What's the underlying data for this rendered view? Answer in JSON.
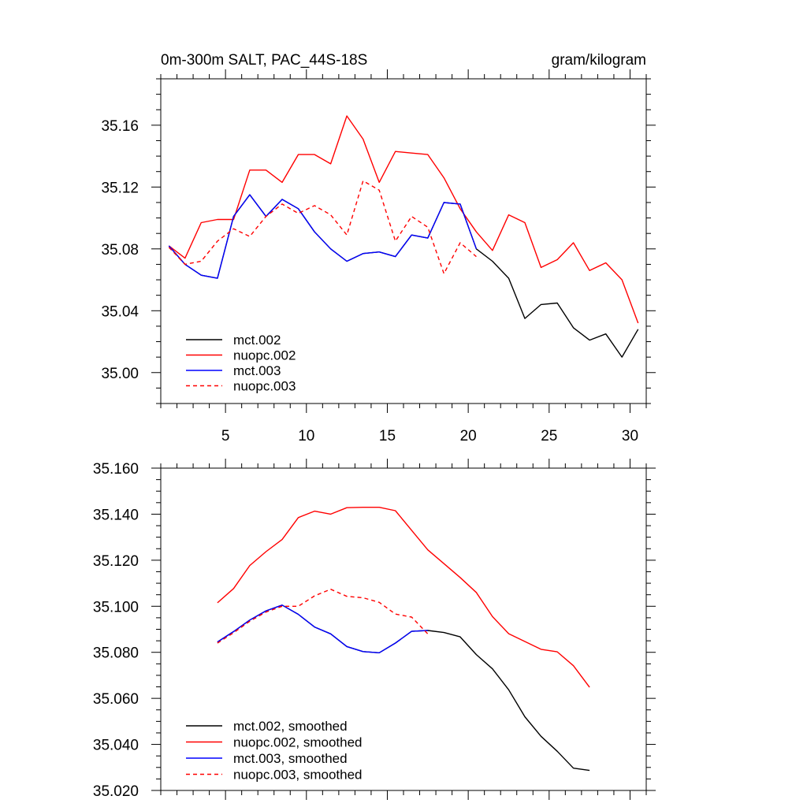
{
  "chart_data": [
    {
      "type": "line",
      "title": "0m-300m SALT, PAC_44S-18S",
      "units": "gram/kilogram",
      "xlim": [
        1,
        31
      ],
      "ylim": [
        34.98,
        35.19
      ],
      "x_ticks": [
        5,
        10,
        15,
        20,
        25,
        30
      ],
      "y_ticks": [
        35.0,
        35.04,
        35.08,
        35.12,
        35.16
      ],
      "y_tick_labels": [
        "35.00",
        "35.04",
        "35.08",
        "35.12",
        "35.16"
      ],
      "legend": "bottom-left",
      "series": [
        {
          "name": "mct.002",
          "color": "#000000",
          "dash": "solid",
          "x": [
            1.5,
            2.5,
            3.5,
            4.5,
            5.5,
            6.5,
            7.5,
            8.5,
            9.5,
            10.5,
            11.5,
            12.5,
            13.5,
            14.5,
            15.5,
            16.5,
            17.5,
            18.5,
            19.5,
            20.5,
            21.5,
            22.5,
            23.5,
            24.5,
            25.5,
            26.5,
            27.5,
            28.5,
            29.5,
            30.5
          ],
          "values": [
            35.082,
            35.07,
            35.063,
            35.061,
            35.101,
            35.115,
            35.101,
            35.112,
            35.106,
            35.091,
            35.08,
            35.072,
            35.077,
            35.078,
            35.075,
            35.089,
            35.087,
            35.11,
            35.109,
            35.08,
            35.072,
            35.061,
            35.035,
            35.044,
            35.045,
            35.029,
            35.021,
            35.025,
            35.01,
            35.028
          ]
        },
        {
          "name": "nuopc.002",
          "color": "#ff0000",
          "dash": "solid",
          "x": [
            1.5,
            2.5,
            3.5,
            4.5,
            5.5,
            6.5,
            7.5,
            8.5,
            9.5,
            10.5,
            11.5,
            12.5,
            13.5,
            14.5,
            15.5,
            16.5,
            17.5,
            18.5,
            19.5,
            20.5,
            21.5,
            22.5,
            23.5,
            24.5,
            25.5,
            26.5,
            27.5,
            28.5,
            29.5,
            30.5
          ],
          "values": [
            35.082,
            35.074,
            35.097,
            35.099,
            35.099,
            35.131,
            35.131,
            35.123,
            35.141,
            35.141,
            35.135,
            35.166,
            35.151,
            35.123,
            35.143,
            35.142,
            35.141,
            35.126,
            35.106,
            35.091,
            35.079,
            35.102,
            35.097,
            35.068,
            35.073,
            35.084,
            35.066,
            35.071,
            35.06,
            35.032
          ]
        },
        {
          "name": "mct.003",
          "color": "#0000ff",
          "dash": "solid",
          "x": [
            1.5,
            2.5,
            3.5,
            4.5,
            5.5,
            6.5,
            7.5,
            8.5,
            9.5,
            10.5,
            11.5,
            12.5,
            13.5,
            14.5,
            15.5,
            16.5,
            17.5,
            18.5,
            19.5,
            20.5
          ],
          "values": [
            35.082,
            35.07,
            35.063,
            35.061,
            35.101,
            35.115,
            35.101,
            35.112,
            35.106,
            35.091,
            35.08,
            35.072,
            35.077,
            35.078,
            35.075,
            35.089,
            35.087,
            35.11,
            35.109,
            35.08
          ]
        },
        {
          "name": "nuopc.003",
          "color": "#ff0000",
          "dash": "dashed",
          "x": [
            1.5,
            2.5,
            3.5,
            4.5,
            5.5,
            6.5,
            7.5,
            8.5,
            9.5,
            10.5,
            11.5,
            12.5,
            13.5,
            14.5,
            15.5,
            16.5,
            17.5,
            18.5,
            19.5,
            20.5
          ],
          "values": [
            35.081,
            35.07,
            35.072,
            35.085,
            35.093,
            35.088,
            35.101,
            35.109,
            35.103,
            35.108,
            35.102,
            35.089,
            35.124,
            35.118,
            35.085,
            35.101,
            35.094,
            35.064,
            35.084,
            35.075
          ]
        }
      ]
    },
    {
      "type": "line",
      "xlim": [
        1,
        31
      ],
      "ylim": [
        35.02,
        35.16
      ],
      "x_ticks": [
        5,
        10,
        15,
        20,
        25,
        30
      ],
      "y_ticks": [
        35.02,
        35.04,
        35.06,
        35.08,
        35.1,
        35.12,
        35.14,
        35.16
      ],
      "y_tick_labels": [
        "35.020",
        "35.040",
        "35.060",
        "35.080",
        "35.100",
        "35.120",
        "35.140",
        "35.160"
      ],
      "legend": "bottom-left",
      "series": [
        {
          "name": "mct.002, smoothed",
          "color": "#000000",
          "dash": "solid",
          "x": [
            4.5,
            5.5,
            6.5,
            7.5,
            8.5,
            9.5,
            10.5,
            11.5,
            12.5,
            13.5,
            14.5,
            15.5,
            16.5,
            17.5,
            18.5,
            19.5,
            20.5,
            21.5,
            22.5,
            23.5,
            24.5,
            25.5,
            26.5,
            27.5
          ],
          "values": [
            35.0845,
            35.089,
            35.094,
            35.098,
            35.1005,
            35.0965,
            35.091,
            35.088,
            35.0825,
            35.0803,
            35.0798,
            35.084,
            35.0891,
            35.0895,
            35.0886,
            35.0867,
            35.079,
            35.0728,
            35.0637,
            35.052,
            35.0435,
            35.037,
            35.0297,
            35.0287
          ]
        },
        {
          "name": "nuopc.002, smoothed",
          "color": "#ff0000",
          "dash": "solid",
          "x": [
            4.5,
            5.5,
            6.5,
            7.5,
            8.5,
            9.5,
            10.5,
            11.5,
            12.5,
            13.5,
            14.5,
            15.5,
            16.5,
            17.5,
            18.5,
            19.5,
            20.5,
            21.5,
            22.5,
            23.5,
            24.5,
            25.5,
            26.5,
            27.5
          ],
          "values": [
            35.1015,
            35.1077,
            35.1177,
            35.1237,
            35.129,
            35.1385,
            35.1413,
            35.14,
            35.1428,
            35.143,
            35.143,
            35.1415,
            35.133,
            35.1245,
            35.1185,
            35.1125,
            35.106,
            35.0955,
            35.0881,
            35.0847,
            35.0813,
            35.0802,
            35.0742,
            35.0648
          ]
        },
        {
          "name": "mct.003, smoothed",
          "color": "#0000ff",
          "dash": "solid",
          "x": [
            4.5,
            5.5,
            6.5,
            7.5,
            8.5,
            9.5,
            10.5,
            11.5,
            12.5,
            13.5,
            14.5,
            15.5,
            16.5,
            17.5
          ],
          "values": [
            35.0845,
            35.089,
            35.094,
            35.098,
            35.1005,
            35.0965,
            35.091,
            35.088,
            35.0825,
            35.0803,
            35.0798,
            35.084,
            35.0891,
            35.0895
          ]
        },
        {
          "name": "nuopc.003, smoothed",
          "color": "#ff0000",
          "dash": "dashed",
          "x": [
            4.5,
            5.5,
            6.5,
            7.5,
            8.5,
            9.5,
            10.5,
            11.5,
            12.5,
            13.5,
            14.5,
            15.5,
            16.5,
            17.5
          ],
          "values": [
            35.084,
            35.0885,
            35.0935,
            35.0975,
            35.1,
            35.1,
            35.1045,
            35.1074,
            35.1043,
            35.1037,
            35.1017,
            35.0966,
            35.0953,
            35.088
          ]
        }
      ]
    }
  ]
}
